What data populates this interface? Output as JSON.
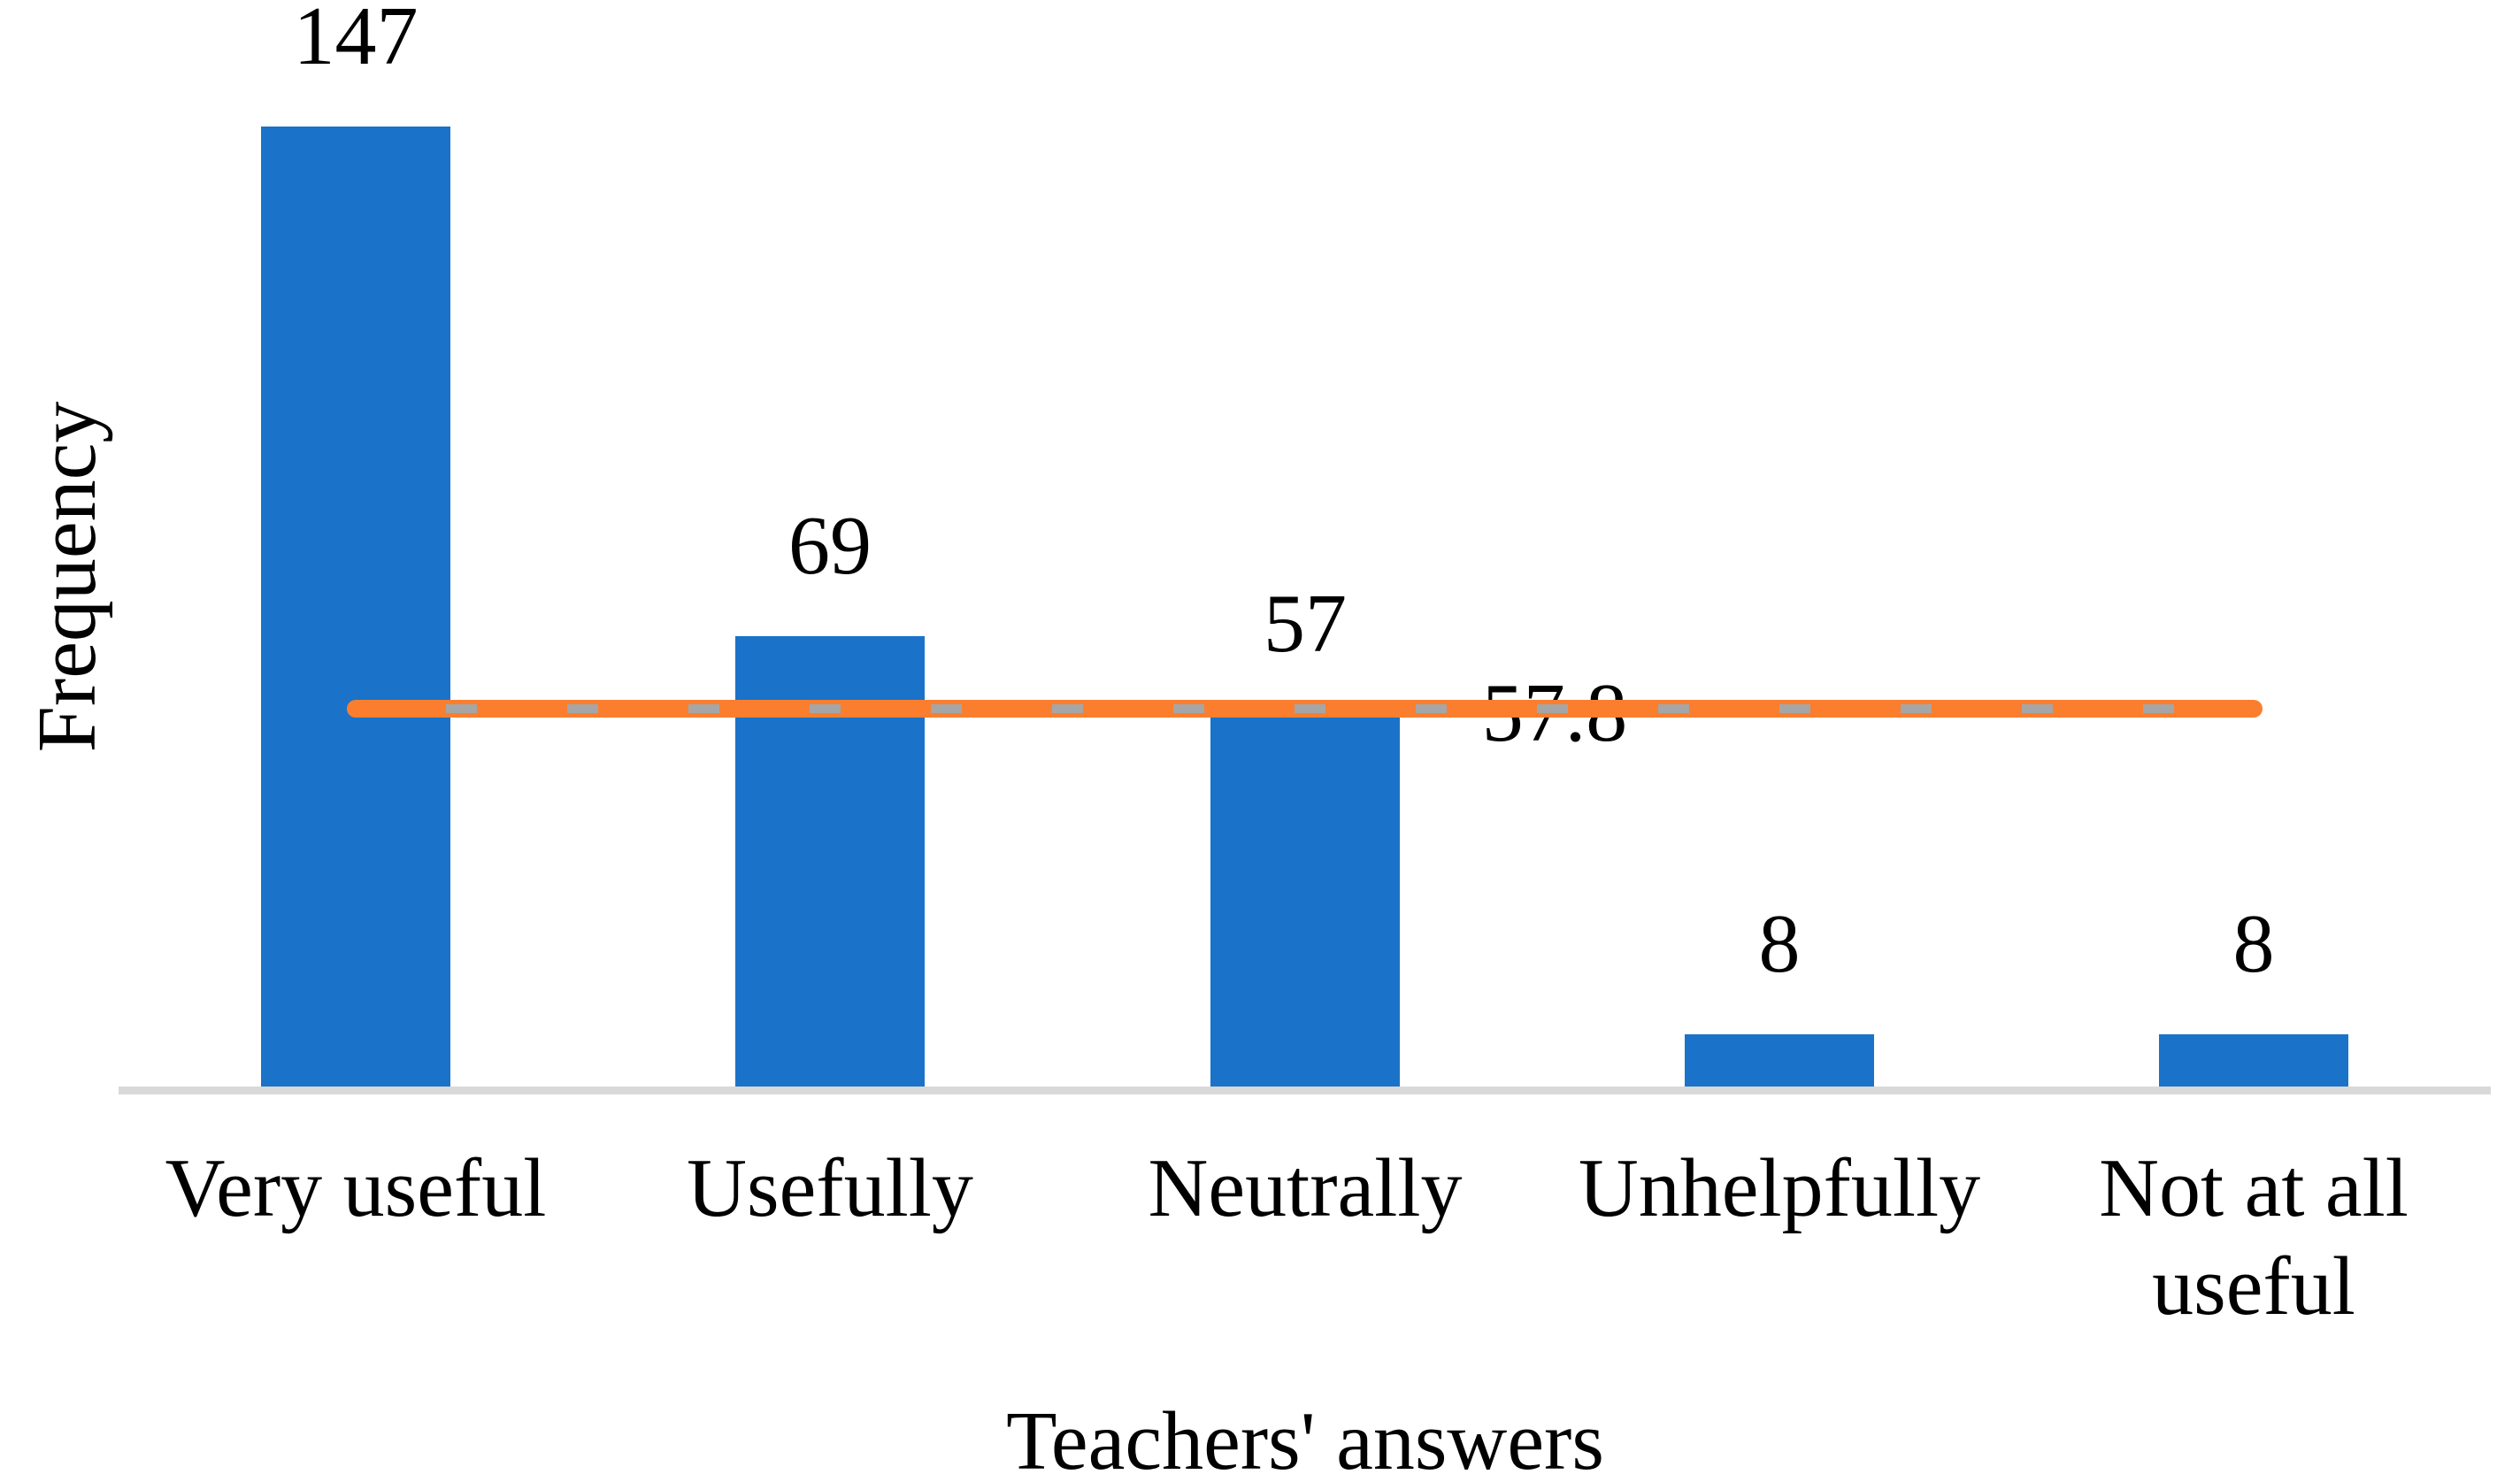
{
  "chart_data": {
    "type": "bar",
    "title": "",
    "categories": [
      "Very useful",
      "Usefully",
      "Neutrally",
      "Unhelpfully",
      "Not at all useful"
    ],
    "values": [
      147,
      69,
      57,
      8,
      8
    ],
    "data_labels": [
      "147",
      "69",
      "57",
      "8",
      "8"
    ],
    "xlabel": "Teachers' answers",
    "ylabel": "Frequency",
    "ylim": [
      0,
      160
    ],
    "grid": false,
    "legend": false,
    "y_axis_ticks_visible": false,
    "average_line": {
      "value": 57.8,
      "label": "57.8",
      "style": "solid orange with gray dash overlay"
    },
    "colors": {
      "bar": "#1A73C8",
      "average_line": "#FA7E2E",
      "average_line_dashes": "#A6A6A6",
      "axis_line": "#D9D9D9",
      "text": "#000000"
    }
  }
}
